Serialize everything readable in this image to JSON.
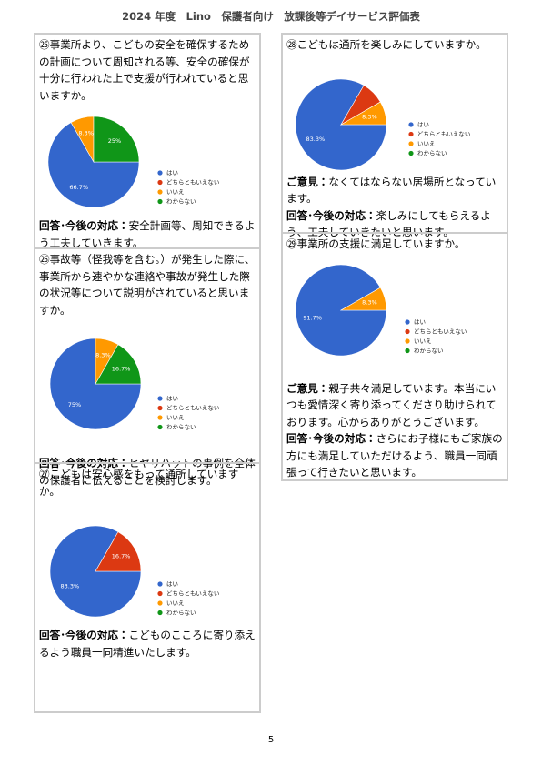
{
  "header": {
    "title": "2024 年度　Lino　保護者向け　放課後等デイサービス評価表"
  },
  "sections": [
    {
      "question": "㉕事業所より、こどもの安全を確保するための計画について周知される等、安全の確保が十分に行われた上で支援が行われていると思いますか。",
      "chart": {
        "type": "pie",
        "categories": [
          "はい",
          "どちらともいえない",
          "いいえ",
          "わからない"
        ],
        "colors": [
          "#3366cc",
          "#dc3912",
          "#ff9900",
          "#109618"
        ],
        "values": [
          66.7,
          0,
          8.3,
          25
        ],
        "value_labels": [
          "66.7%",
          null,
          "8.3%",
          "25%"
        ]
      },
      "response_label": "回答･今後の対応：",
      "response": "安全計画等、周知できるよう工夫していきます。"
    },
    {
      "question": "㉖事故等（怪我等を含む。）が発生した際に、事業所から速やかな連絡や事故が発生した際の状況等について説明がされていると思いますか。",
      "chart": {
        "type": "pie",
        "categories": [
          "はい",
          "どちらともいえない",
          "いいえ",
          "わからない"
        ],
        "colors": [
          "#3366cc",
          "#dc3912",
          "#ff9900",
          "#109618"
        ],
        "values": [
          75,
          0,
          8.3,
          16.7
        ],
        "value_labels": [
          "75%",
          null,
          "8.3%",
          "16.7%"
        ]
      },
      "response_label": "回答･今後の対応：",
      "response": "ヒヤリハットの事例を全体の保護者に伝えることを検討します。"
    },
    {
      "question": "㉗こどもは安心感をもって通所していますか。",
      "chart": {
        "type": "pie",
        "categories": [
          "はい",
          "どちらともいえない",
          "いいえ",
          "わからない"
        ],
        "colors": [
          "#3366cc",
          "#dc3912",
          "#ff9900",
          "#109618"
        ],
        "values": [
          83.3,
          16.7,
          0,
          0
        ],
        "value_labels": [
          "83.3%",
          "16.7%",
          null,
          null
        ]
      },
      "response_label": "回答･今後の対応：",
      "response": "こどものこころに寄り添えるよう職員一同精進いたします。"
    },
    {
      "question": "㉘こどもは通所を楽しみにしていますか。",
      "chart": {
        "type": "pie",
        "categories": [
          "はい",
          "どちらともいえない",
          "いいえ",
          "わからない"
        ],
        "colors": [
          "#3366cc",
          "#dc3912",
          "#ff9900",
          "#109618"
        ],
        "values": [
          83.3,
          8.3,
          8.3,
          0
        ],
        "value_labels": [
          "83.3%",
          null,
          "8.3%",
          null
        ]
      },
      "opinion_label": "ご意見：",
      "opinion": "なくてはならない居場所となっています。",
      "response_label": "回答･今後の対応：",
      "response": "楽しみにしてもらえるよう、工夫していきたいと思います。"
    },
    {
      "question": "㉙事業所の支援に満足していますか。",
      "chart": {
        "type": "pie",
        "categories": [
          "はい",
          "どちらともいえない",
          "いいえ",
          "わからない"
        ],
        "colors": [
          "#3366cc",
          "#dc3912",
          "#ff9900",
          "#109618"
        ],
        "values": [
          91.7,
          0,
          8.3,
          0
        ],
        "value_labels": [
          "91.7%",
          null,
          "8.3%",
          null
        ]
      },
      "opinion_label": "ご意見：",
      "opinion": "親子共々満足しています。本当にいつも愛情深く寄り添ってくださり助けられております。心からありがとうございます。",
      "response_label": "回答･今後の対応：",
      "response": "さらにお子様にもご家族の方にも満足していただけるよう、職員一同頑張って行きたいと思います。"
    }
  ],
  "footer": {
    "page_number": "5"
  }
}
